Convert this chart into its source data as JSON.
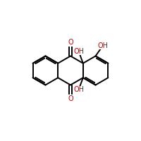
{
  "bond_color": "#000000",
  "o_color": "#cc0000",
  "bond_lw": 1.4,
  "font_size": 7.0,
  "bl": 0.95,
  "xlim": [
    -4.5,
    4.5
  ],
  "ylim": [
    -4.5,
    4.5
  ],
  "figsize": [
    2.0,
    2.0
  ],
  "dpi": 100
}
